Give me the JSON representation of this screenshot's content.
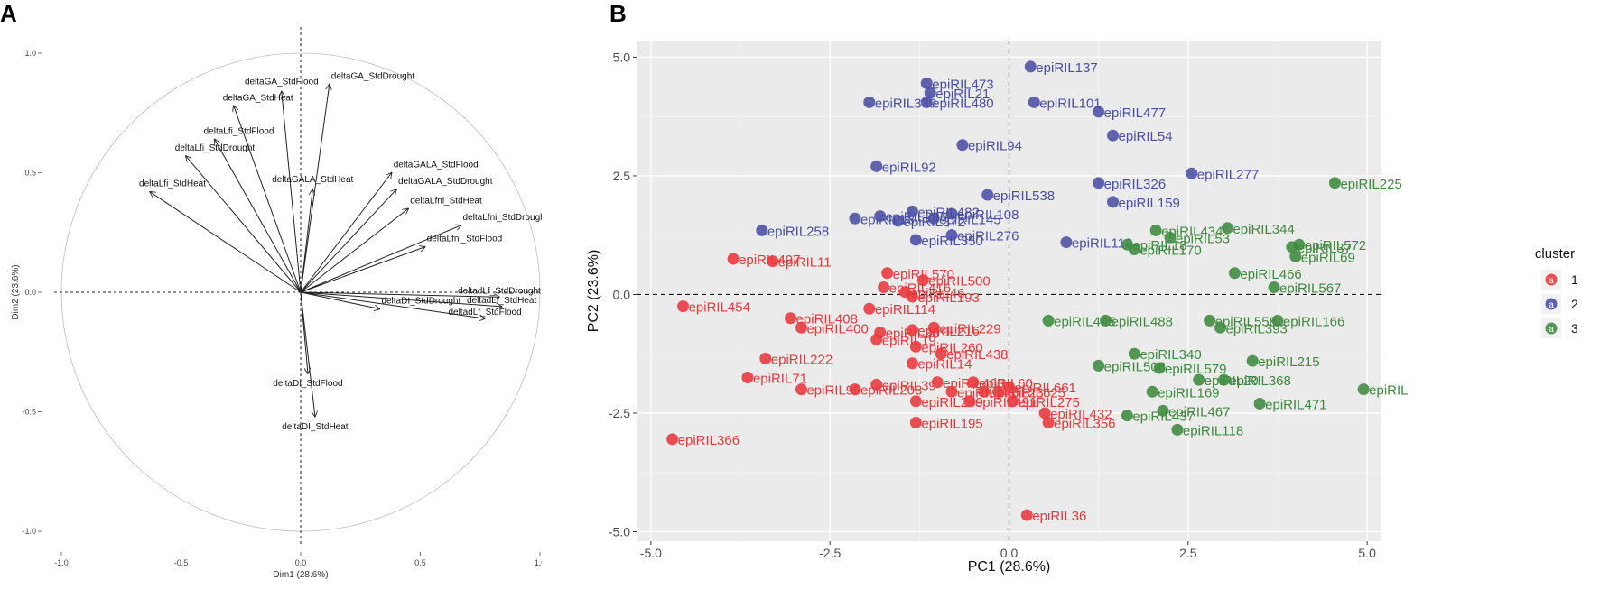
{
  "panels": {
    "a": "A",
    "b": "B"
  },
  "chart_data": [
    {
      "type": "variables_factor_map",
      "panel": "A",
      "xlabel": "Dim1 (28.6%)",
      "ylabel": "Dim2 (23.6%)",
      "xlim": [
        -1.0,
        1.0
      ],
      "ylim": [
        -1.0,
        1.0
      ],
      "xticks": [
        "-1.0",
        "-0.5",
        "0.0",
        "0.5",
        "1.0"
      ],
      "yticks": [
        "-1.0",
        "-0.5",
        "0.0",
        "0.5",
        "1.0"
      ],
      "tick_values": [
        -1.0,
        -0.5,
        0.0,
        0.5,
        1.0
      ],
      "arrows": [
        {
          "label": "deltaGA_StdDrought",
          "x": 0.12,
          "y": 0.87
        },
        {
          "label": "deltaGA_StdFlood",
          "x": -0.08,
          "y": 0.84
        },
        {
          "label": "deltaGA_StdHeat",
          "x": -0.28,
          "y": 0.78
        },
        {
          "label": "deltaLfi_StdFlood",
          "x": -0.36,
          "y": 0.64
        },
        {
          "label": "deltaLfi_StdDrought",
          "x": -0.48,
          "y": 0.57
        },
        {
          "label": "deltaLfi_StdHeat",
          "x": -0.63,
          "y": 0.42
        },
        {
          "label": "deltaGALA_StdFlood",
          "x": 0.38,
          "y": 0.5
        },
        {
          "label": "deltaGALA_StdHeat",
          "x": 0.05,
          "y": 0.43
        },
        {
          "label": "deltaGALA_StdDrought",
          "x": 0.4,
          "y": 0.43
        },
        {
          "label": "deltaLfni_StdHeat",
          "x": 0.45,
          "y": 0.35
        },
        {
          "label": "deltaLfni_StdDrought",
          "x": 0.67,
          "y": 0.28
        },
        {
          "label": "deltaLfni_StdFlood",
          "x": 0.52,
          "y": 0.19
        },
        {
          "label": "deltadLf_StdDrought",
          "x": 0.83,
          "y": -0.02
        },
        {
          "label": "deltadLf_StdHeat",
          "x": 0.84,
          "y": -0.06
        },
        {
          "label": "deltadLf_StdFlood",
          "x": 0.77,
          "y": -0.11
        },
        {
          "label": "deltaDI_StdDrought",
          "x": 0.33,
          "y": -0.07
        },
        {
          "label": "deltaDI_StdFlood",
          "x": 0.03,
          "y": -0.34
        },
        {
          "label": "deltaDI_StdHeat",
          "x": 0.06,
          "y": -0.52
        }
      ]
    },
    {
      "type": "scatter",
      "panel": "B",
      "xlabel": "PC1 (28.6%)",
      "ylabel": "PC2 (23.6%)",
      "xlim": [
        -5.2,
        5.2
      ],
      "ylim": [
        -5.2,
        5.35
      ],
      "xticks": [
        "-5.0",
        "-2.5",
        "0.0",
        "2.5",
        "5.0"
      ],
      "yticks": [
        "-5.0",
        "-2.5",
        "0.0",
        "2.5",
        "5.0"
      ],
      "tick_values": [
        -5.0,
        -2.5,
        0.0,
        2.5,
        5.0
      ],
      "legend": {
        "title": "cluster",
        "entries": [
          "1",
          "2",
          "3"
        ],
        "glyph": "a",
        "position": "right"
      },
      "series": [
        {
          "name": "1",
          "color": "#e8373b",
          "points": [
            {
              "label": "epiRIL454",
              "x": -4.55,
              "y": -0.25
            },
            {
              "label": "epiRIL366",
              "x": -4.7,
              "y": -3.05
            },
            {
              "label": "epiRIL497",
              "x": -3.85,
              "y": 0.75
            },
            {
              "label": "epiRIL11",
              "x": -3.3,
              "y": 0.7
            },
            {
              "label": "epiRIL408",
              "x": -3.05,
              "y": -0.5
            },
            {
              "label": "epiRIL400",
              "x": -2.9,
              "y": -0.7
            },
            {
              "label": "epiRIL222",
              "x": -3.4,
              "y": -1.35
            },
            {
              "label": "epiRIL71",
              "x": -3.65,
              "y": -1.75
            },
            {
              "label": "epiRIL99",
              "x": -2.9,
              "y": -2.0
            },
            {
              "label": "epiRIL208",
              "x": -2.15,
              "y": -2.0
            },
            {
              "label": "epiRIL570",
              "x": -1.7,
              "y": 0.45
            },
            {
              "label": "epiRIL500",
              "x": -1.2,
              "y": 0.3
            },
            {
              "label": "epiRIL416",
              "x": -1.75,
              "y": 0.15
            },
            {
              "label": "epiRIL46",
              "x": -1.45,
              "y": 0.05
            },
            {
              "label": "epiRIL193",
              "x": -1.35,
              "y": -0.05
            },
            {
              "label": "epiRIL114",
              "x": -1.95,
              "y": -0.3
            },
            {
              "label": "epiRIL229",
              "x": -1.05,
              "y": -0.7
            },
            {
              "label": "epiRIL216",
              "x": -1.35,
              "y": -0.75
            },
            {
              "label": "epiRIL30",
              "x": -1.8,
              "y": -0.8
            },
            {
              "label": "epiRIL19",
              "x": -1.85,
              "y": -0.95
            },
            {
              "label": "epiRIL260",
              "x": -1.3,
              "y": -1.1
            },
            {
              "label": "epiRIL438",
              "x": -0.95,
              "y": -1.25
            },
            {
              "label": "epiRIL14",
              "x": -1.35,
              "y": -1.45
            },
            {
              "label": "epiRIL39",
              "x": -1.85,
              "y": -1.9
            },
            {
              "label": "epiRIL460",
              "x": -1.0,
              "y": -1.85
            },
            {
              "label": "epiRIL60",
              "x": -0.5,
              "y": -1.85
            },
            {
              "label": "epiRIL148",
              "x": -0.8,
              "y": -2.05
            },
            {
              "label": "epiRIL23",
              "x": -0.35,
              "y": -2.05
            },
            {
              "label": "epiRIL249",
              "x": -1.3,
              "y": -2.25
            },
            {
              "label": "epiRIL491",
              "x": -0.55,
              "y": -2.25
            },
            {
              "label": "epiRIL661",
              "x": 0.0,
              "y": -1.95
            },
            {
              "label": "epiRIL625",
              "x": -0.15,
              "y": -2.05
            },
            {
              "label": "epiRIL275",
              "x": 0.05,
              "y": -2.25
            },
            {
              "label": "epiRIL432",
              "x": 0.5,
              "y": -2.5
            },
            {
              "label": "epiRIL356",
              "x": 0.55,
              "y": -2.7
            },
            {
              "label": "epiRIL195",
              "x": -1.3,
              "y": -2.7
            },
            {
              "label": "epiRIL36",
              "x": 0.25,
              "y": -4.65
            }
          ]
        },
        {
          "name": "2",
          "color": "#4a4fa3",
          "points": [
            {
              "label": "epiRIL137",
              "x": 0.3,
              "y": 4.8
            },
            {
              "label": "epiRIL473",
              "x": -1.15,
              "y": 4.45
            },
            {
              "label": "epiRIL21",
              "x": -1.1,
              "y": 4.25
            },
            {
              "label": "epiRIL480",
              "x": -1.15,
              "y": 4.05
            },
            {
              "label": "epiRIL339",
              "x": -1.95,
              "y": 4.05
            },
            {
              "label": "epiRIL101",
              "x": 0.35,
              "y": 4.05
            },
            {
              "label": "epiRIL477",
              "x": 1.25,
              "y": 3.85
            },
            {
              "label": "epiRIL54",
              "x": 1.45,
              "y": 3.35
            },
            {
              "label": "epiRIL94",
              "x": -0.65,
              "y": 3.15
            },
            {
              "label": "epiRIL92",
              "x": -1.85,
              "y": 2.7
            },
            {
              "label": "epiRIL277",
              "x": 2.55,
              "y": 2.55
            },
            {
              "label": "epiRIL326",
              "x": 1.25,
              "y": 2.35
            },
            {
              "label": "epiRIL538",
              "x": -0.3,
              "y": 2.1
            },
            {
              "label": "epiRIL159",
              "x": 1.45,
              "y": 1.95
            },
            {
              "label": "epiRIL482",
              "x": -1.35,
              "y": 1.75
            },
            {
              "label": "epiRIL108",
              "x": -0.8,
              "y": 1.7
            },
            {
              "label": "epiRIL145",
              "x": -1.05,
              "y": 1.6
            },
            {
              "label": "epiRIL286",
              "x": -1.8,
              "y": 1.65
            },
            {
              "label": "epiRIL372",
              "x": -1.55,
              "y": 1.55
            },
            {
              "label": "epiRIL18",
              "x": -2.15,
              "y": 1.6
            },
            {
              "label": "epiRIL258",
              "x": -3.45,
              "y": 1.35
            },
            {
              "label": "epiRIL276",
              "x": -0.8,
              "y": 1.25
            },
            {
              "label": "epiRIL350",
              "x": -1.3,
              "y": 1.15
            },
            {
              "label": "epiRIL112",
              "x": 0.8,
              "y": 1.1
            }
          ]
        },
        {
          "name": "3",
          "color": "#3e8a3e",
          "points": [
            {
              "label": "epiRIL225",
              "x": 4.55,
              "y": 2.35
            },
            {
              "label": "epiRIL344",
              "x": 3.05,
              "y": 1.4
            },
            {
              "label": "epiRIL434",
              "x": 2.05,
              "y": 1.35
            },
            {
              "label": "epiRIL53",
              "x": 2.25,
              "y": 1.2
            },
            {
              "label": "epiRIL18b",
              "x": 1.65,
              "y": 1.05
            },
            {
              "label": "epiRIL170",
              "x": 1.75,
              "y": 0.95
            },
            {
              "label": "epiRIL572",
              "x": 4.05,
              "y": 1.05
            },
            {
              "label": "epiRIL37",
              "x": 3.95,
              "y": 1.0
            },
            {
              "label": "epiRIL69",
              "x": 4.0,
              "y": 0.8
            },
            {
              "label": "epiRIL466",
              "x": 3.15,
              "y": 0.45
            },
            {
              "label": "epiRIL567",
              "x": 3.7,
              "y": 0.15
            },
            {
              "label": "epiRIL495",
              "x": 0.55,
              "y": -0.55
            },
            {
              "label": "epiRIL488",
              "x": 1.35,
              "y": -0.55
            },
            {
              "label": "epiRIL558",
              "x": 2.8,
              "y": -0.55
            },
            {
              "label": "epiRIL393",
              "x": 2.95,
              "y": -0.7
            },
            {
              "label": "epiRIL166",
              "x": 3.75,
              "y": -0.55
            },
            {
              "label": "epiRIL340",
              "x": 1.75,
              "y": -1.25
            },
            {
              "label": "epiRIL508",
              "x": 1.25,
              "y": -1.5
            },
            {
              "label": "epiRIL579",
              "x": 2.1,
              "y": -1.55
            },
            {
              "label": "epiRIL215",
              "x": 3.4,
              "y": -1.4
            },
            {
              "label": "epiRIL20",
              "x": 2.65,
              "y": -1.8
            },
            {
              "label": "epiRIL368",
              "x": 3.0,
              "y": -1.8
            },
            {
              "label": "epiRIL169",
              "x": 2.0,
              "y": -2.05
            },
            {
              "label": "epiRIL437",
              "x": 1.65,
              "y": -2.55
            },
            {
              "label": "epiRIL467",
              "x": 2.15,
              "y": -2.45
            },
            {
              "label": "epiRIL471",
              "x": 3.5,
              "y": -2.3
            },
            {
              "label": "epiRIL118",
              "x": 2.35,
              "y": -2.85
            },
            {
              "label": "epiRIL",
              "x": 4.95,
              "y": -2.0
            }
          ]
        }
      ]
    }
  ]
}
